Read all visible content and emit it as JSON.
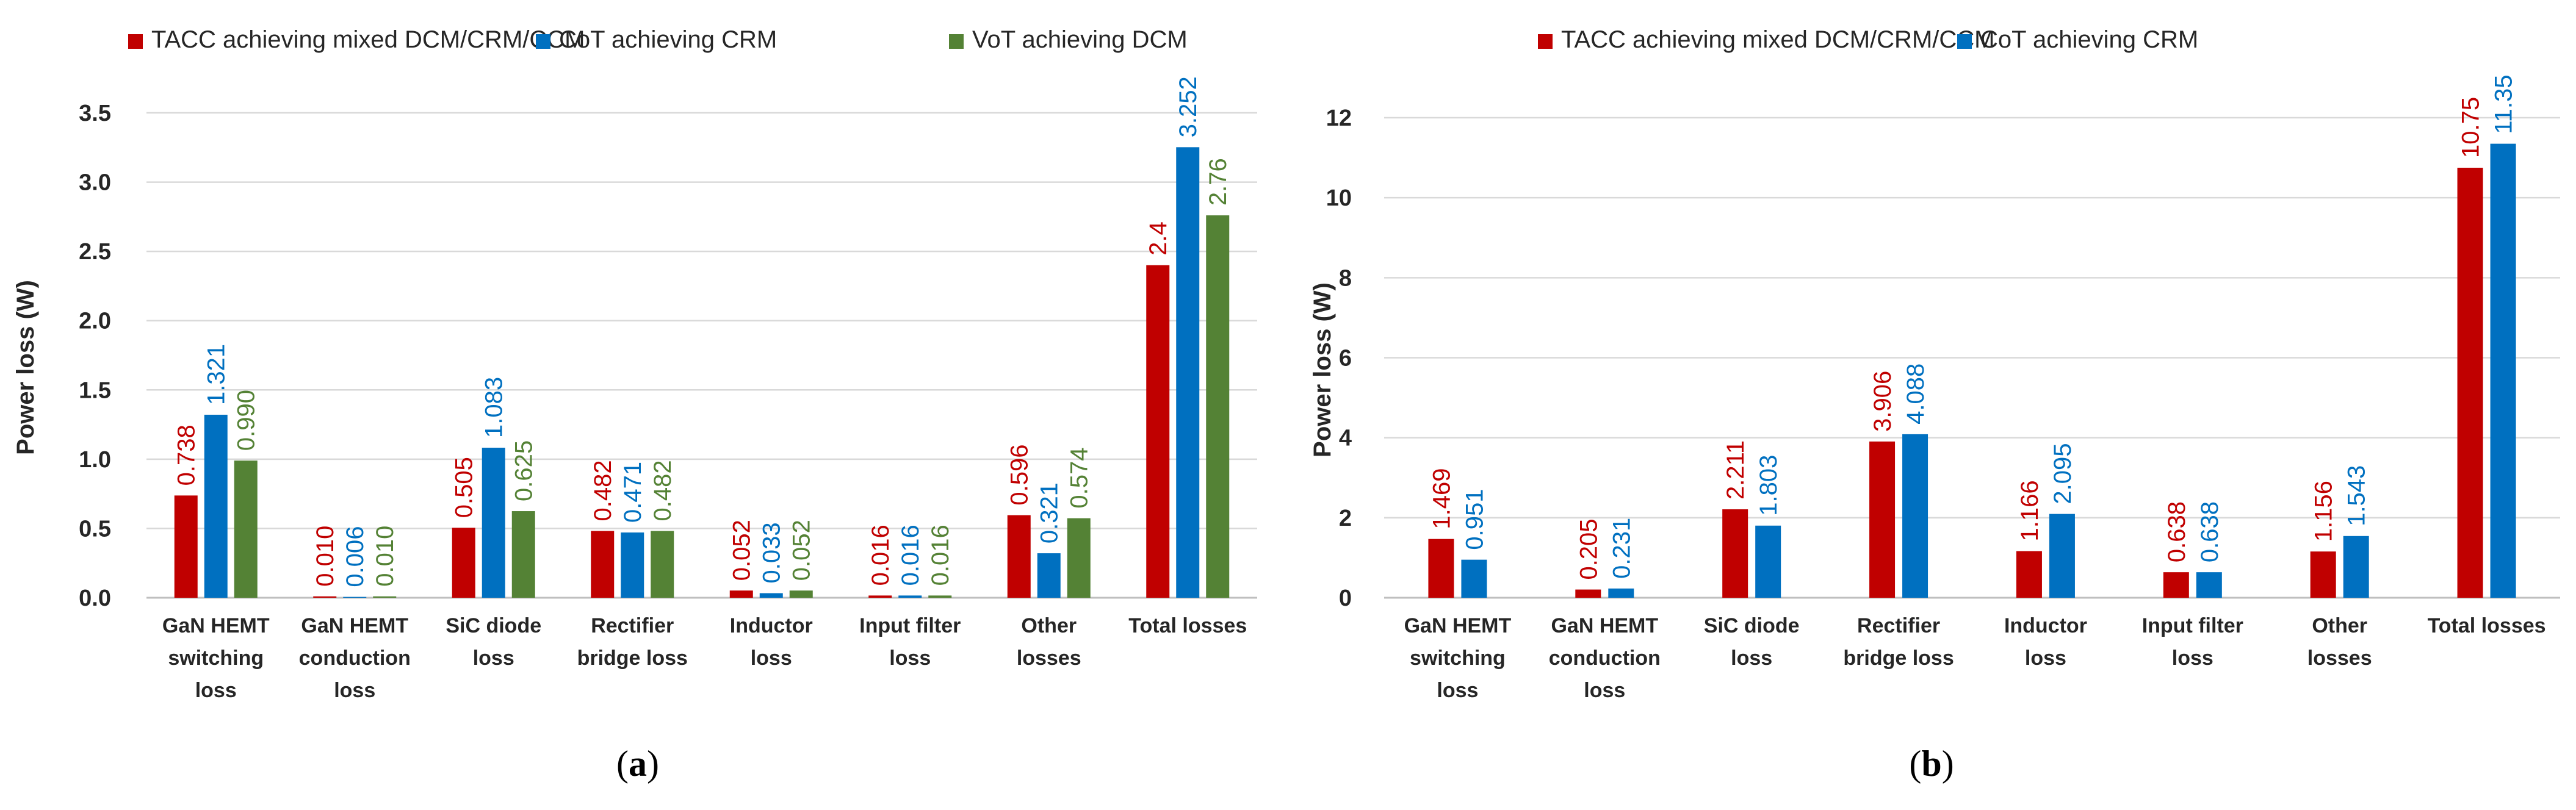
{
  "chart_data": [
    {
      "type": "bar",
      "panel_label": "a",
      "ylabel": "Power loss (W)",
      "ylim": [
        0,
        3.5
      ],
      "yticks": [
        "0.0",
        "0.5",
        "1.0",
        "1.5",
        "2.0",
        "2.5",
        "3.0",
        "3.5"
      ],
      "grid": true,
      "legend_position": "top",
      "categories": [
        [
          "GaN HEMT",
          "switching",
          "loss"
        ],
        [
          "GaN HEMT",
          "conduction",
          "loss"
        ],
        [
          "SiC diode",
          "loss"
        ],
        [
          "Rectifier",
          "bridge loss"
        ],
        [
          "Inductor",
          "loss"
        ],
        [
          "Input filter",
          "loss"
        ],
        [
          "Other",
          "losses"
        ],
        [
          "Total losses"
        ]
      ],
      "series": [
        {
          "name": "TACC achieving mixed DCM/CRM/CCM",
          "color": "#C00000",
          "values": [
            0.738,
            0.01,
            0.505,
            0.482,
            0.052,
            0.016,
            0.596,
            2.4
          ],
          "labels": [
            "0.738",
            "0.010",
            "0.505",
            "0.482",
            "0.052",
            "0.016",
            "0.596",
            "2.4"
          ]
        },
        {
          "name": "CoT achieving CRM",
          "color": "#0070C0",
          "values": [
            1.321,
            0.006,
            1.083,
            0.471,
            0.033,
            0.016,
            0.321,
            3.252
          ],
          "labels": [
            "1.321",
            "0.006",
            "1.083",
            "0.471",
            "0.033",
            "0.016",
            "0.321",
            "3.252"
          ]
        },
        {
          "name": "VoT achieving DCM",
          "color": "#548235",
          "values": [
            0.99,
            0.01,
            0.625,
            0.482,
            0.052,
            0.016,
            0.574,
            2.76
          ],
          "labels": [
            "0.990",
            "0.010",
            "0.625",
            "0.482",
            "0.052",
            "0.016",
            "0.574",
            "2.76"
          ]
        }
      ]
    },
    {
      "type": "bar",
      "panel_label": "b",
      "ylabel": "Power loss (W)",
      "ylim": [
        0,
        12
      ],
      "yticks": [
        "0",
        "2",
        "4",
        "6",
        "8",
        "10",
        "12"
      ],
      "grid": true,
      "legend_position": "top",
      "categories": [
        [
          "GaN HEMT",
          "switching",
          "loss"
        ],
        [
          "GaN HEMT",
          "conduction",
          "loss"
        ],
        [
          "SiC diode",
          "loss"
        ],
        [
          "Rectifier",
          "bridge loss"
        ],
        [
          "Inductor",
          "loss"
        ],
        [
          "Input filter",
          "loss"
        ],
        [
          "Other",
          "losses"
        ],
        [
          "Total losses"
        ]
      ],
      "series": [
        {
          "name": "TACC achieving mixed DCM/CRM/CCM",
          "color": "#C00000",
          "values": [
            1.469,
            0.205,
            2.211,
            3.906,
            1.166,
            0.638,
            1.156,
            10.75
          ],
          "labels": [
            "1.469",
            "0.205",
            "2.211",
            "3.906",
            "1.166",
            "0.638",
            "1.156",
            "10.75"
          ]
        },
        {
          "name": "CoT achieving CRM",
          "color": "#0070C0",
          "values": [
            0.951,
            0.231,
            1.803,
            4.088,
            2.095,
            0.638,
            1.543,
            11.35
          ],
          "labels": [
            "0.951",
            "0.231",
            "1.803",
            "4.088",
            "2.095",
            "0.638",
            "1.543",
            "11.35"
          ]
        }
      ]
    }
  ]
}
